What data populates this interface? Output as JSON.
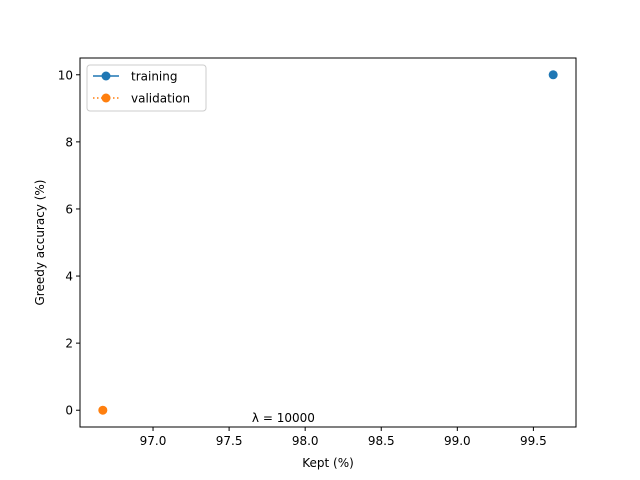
{
  "chart_data": {
    "type": "scatter",
    "title": "",
    "xlabel": "Kept (%)",
    "ylabel": "Greedy accuracy (%)",
    "xlim": [
      96.52,
      99.78
    ],
    "ylim": [
      -0.5,
      10.5
    ],
    "xticks": [
      97.0,
      97.5,
      98.0,
      98.5,
      99.0,
      99.5
    ],
    "yticks": [
      0,
      2,
      4,
      6,
      8,
      10
    ],
    "xtick_labels": [
      "97.0",
      "97.5",
      "98.0",
      "98.5",
      "99.0",
      "99.5"
    ],
    "ytick_labels": [
      "0",
      "2",
      "4",
      "6",
      "8",
      "10"
    ],
    "grid": false,
    "legend_position": "upper-left",
    "series": [
      {
        "name": "training",
        "color": "#1f77b4",
        "line_style": "solid",
        "marker": "circle",
        "x": [
          99.63
        ],
        "y": [
          10.0
        ]
      },
      {
        "name": "validation",
        "color": "#ff7f0e",
        "line_style": "dotted",
        "marker": "circle",
        "x": [
          96.67
        ],
        "y": [
          0.0
        ]
      }
    ],
    "annotation": {
      "text": "λ = 10000",
      "x": 97.65,
      "y": -0.35
    }
  }
}
